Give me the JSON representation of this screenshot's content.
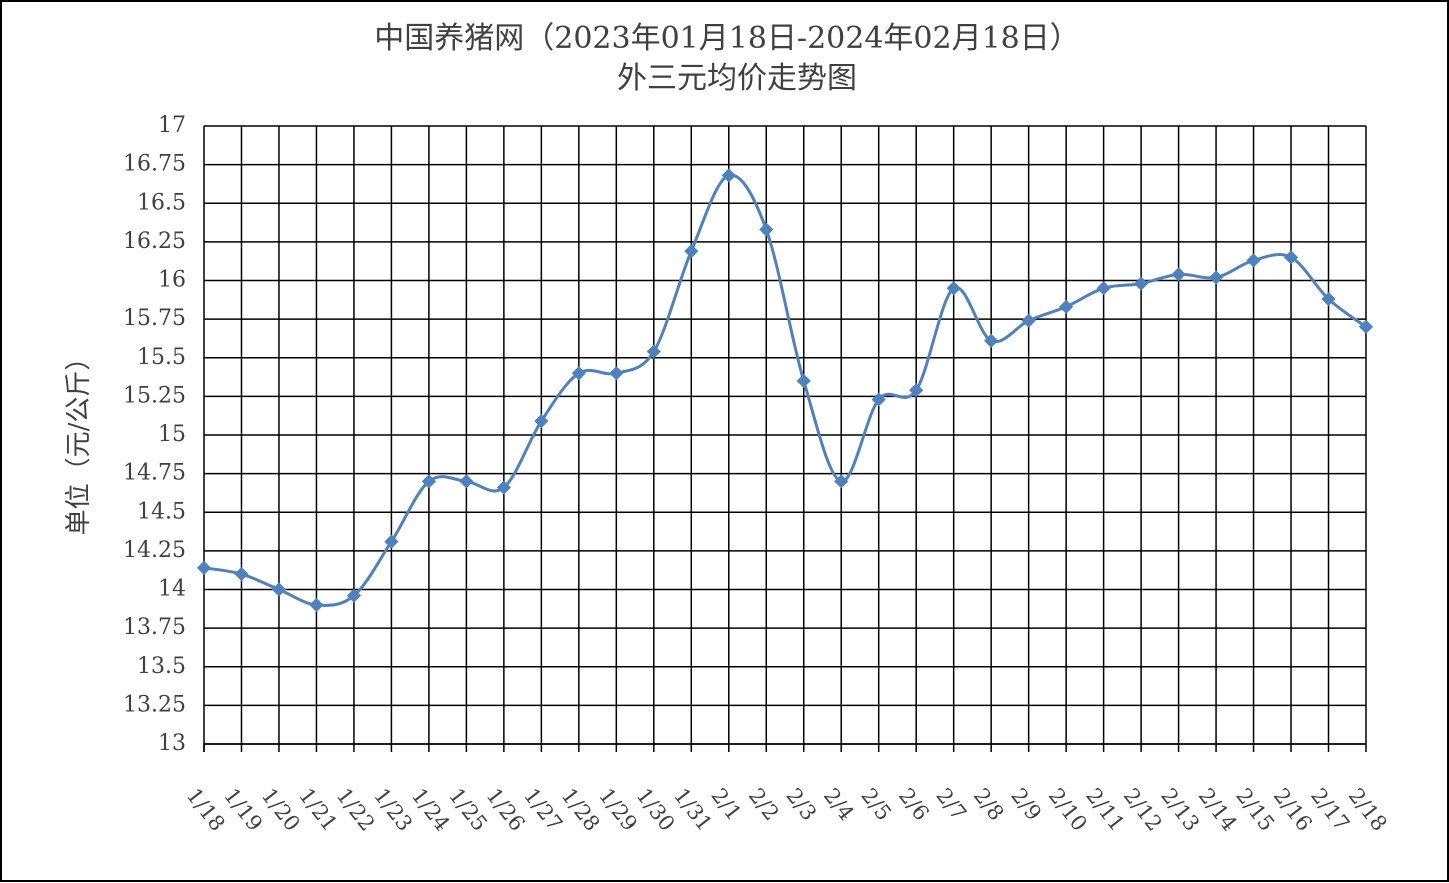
{
  "chart_data": {
    "type": "line",
    "title": "中国养猪网（2023年01月18日-2024年02月18日）",
    "subtitle": "外三元均价走势图",
    "y_label": "单位（元/公斤）",
    "categories": [
      "1/18",
      "1/19",
      "1/20",
      "1/21",
      "1/22",
      "1/23",
      "1/24",
      "1/25",
      "1/26",
      "1/27",
      "1/28",
      "1/29",
      "1/30",
      "1/31",
      "2/1",
      "2/2",
      "2/3",
      "2/4",
      "2/5",
      "2/6",
      "2/7",
      "2/8",
      "2/9",
      "2/10",
      "2/11",
      "2/12",
      "2/13",
      "2/14",
      "2/15",
      "2/16",
      "2/17",
      "2/18"
    ],
    "values": [
      14.14,
      14.1,
      14.0,
      13.9,
      13.96,
      14.31,
      14.7,
      14.7,
      14.66,
      15.09,
      15.4,
      15.4,
      15.54,
      16.19,
      16.68,
      16.33,
      15.35,
      14.7,
      15.23,
      15.29,
      15.95,
      15.61,
      15.74,
      15.83,
      15.95,
      15.98,
      16.04,
      16.02,
      16.13,
      16.15,
      15.88,
      15.7
    ],
    "color": "#4f81bd",
    "ylim": [
      13,
      17
    ],
    "yticks": [
      13,
      13.25,
      13.5,
      13.75,
      14,
      14.25,
      14.5,
      14.75,
      15,
      15.25,
      15.5,
      15.75,
      16,
      16.25,
      16.5,
      16.75,
      17
    ],
    "grid": true
  }
}
